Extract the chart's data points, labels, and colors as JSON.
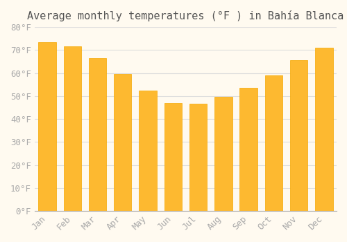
{
  "title": "Average monthly temperatures (°F ) in Bahía Blanca",
  "months": [
    "Jan",
    "Feb",
    "Mar",
    "Apr",
    "May",
    "Jun",
    "Jul",
    "Aug",
    "Sep",
    "Oct",
    "Nov",
    "Dec"
  ],
  "values": [
    73.5,
    71.5,
    66.5,
    59.5,
    52.5,
    47,
    46.5,
    49.5,
    53.5,
    59,
    65.5,
    71
  ],
  "bar_color": "#FDB930",
  "bar_edge_color": "#F5A800",
  "ylim": [
    0,
    80
  ],
  "yticks": [
    0,
    10,
    20,
    30,
    40,
    50,
    60,
    70,
    80
  ],
  "ytick_labels": [
    "0°F",
    "10°F",
    "20°F",
    "30°F",
    "40°F",
    "50°F",
    "60°F",
    "70°F",
    "80°F"
  ],
  "background_color": "#FFFAF0",
  "grid_color": "#DDDDDD",
  "title_fontsize": 11,
  "tick_fontsize": 9,
  "tick_color": "#AAAAAA",
  "title_color": "#555555"
}
